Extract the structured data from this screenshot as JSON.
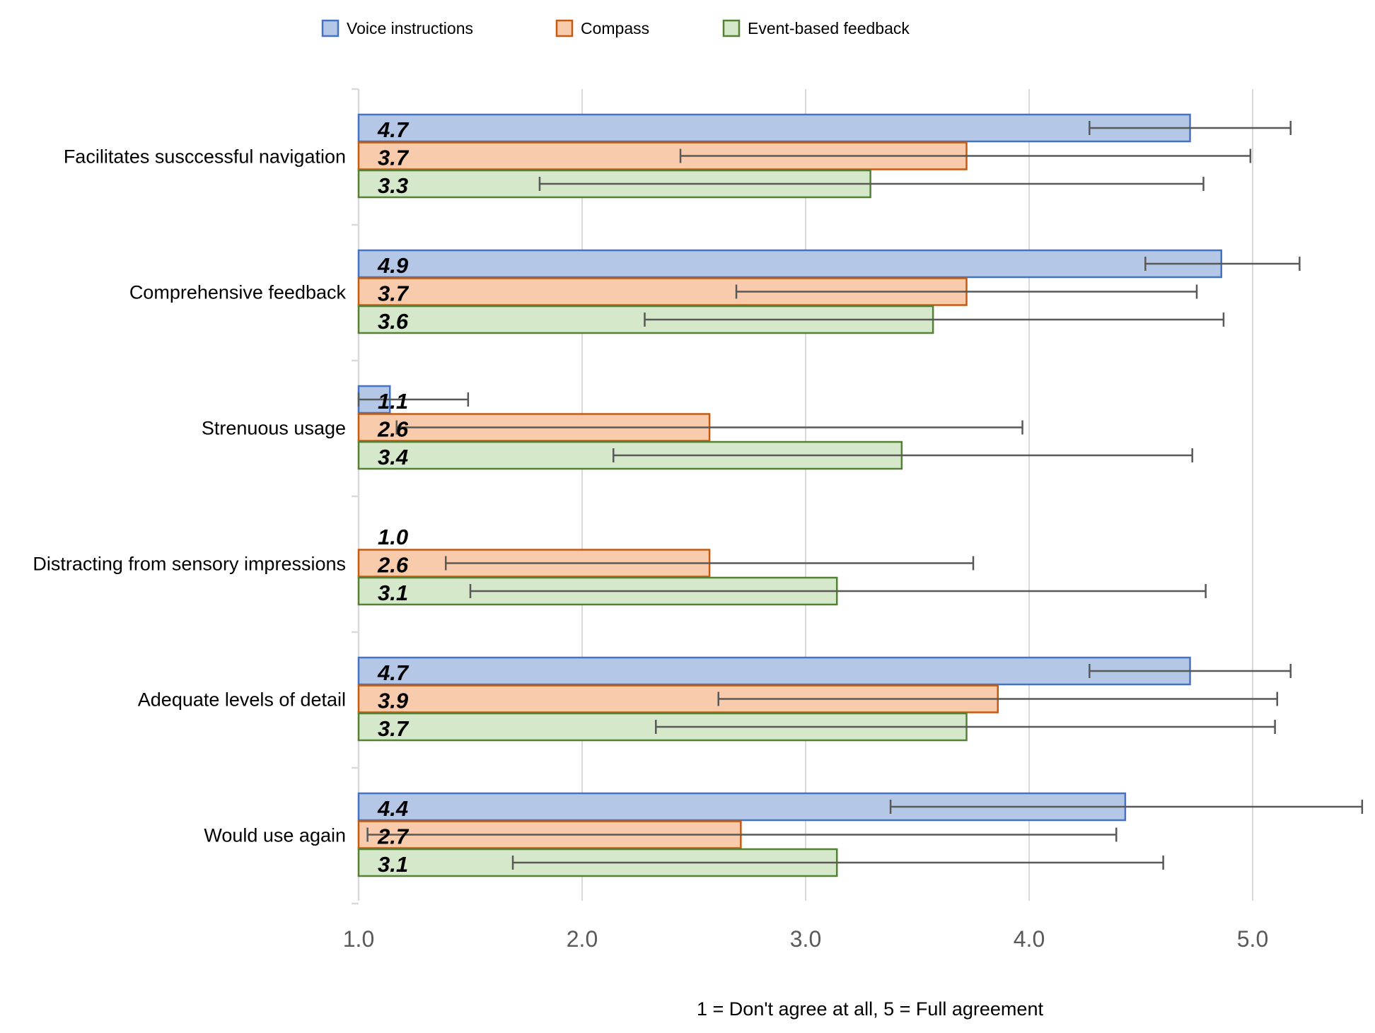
{
  "chart_data": {
    "type": "bar",
    "orientation": "horizontal",
    "title": "",
    "xlabel": "1 = Don't agree at all, 5 = Full agreement",
    "ylabel": "",
    "xlim": [
      1.0,
      5.5
    ],
    "xticks": [
      1.0,
      2.0,
      3.0,
      4.0,
      5.0
    ],
    "xtick_labels": [
      "1.0",
      "2.0",
      "3.0",
      "4.0",
      "5.0"
    ],
    "grid": true,
    "legend_position": "top",
    "categories": [
      "Facilitates susccessful navigation",
      "Comprehensive feedback",
      "Strenuous usage",
      "Distracting from sensory impressions",
      "Adequate levels of detail",
      "Would use again"
    ],
    "series": [
      {
        "name": "Voice instructions",
        "fill": "#b4c7e7",
        "stroke": "#4472c4",
        "values": [
          4.72,
          4.86,
          1.14,
          1.0,
          4.72,
          4.43
        ],
        "labels": [
          "4.7",
          "4.9",
          "1.1",
          "1.0",
          "4.7",
          "4.4"
        ],
        "error_low": [
          4.27,
          4.52,
          1.0,
          null,
          4.27,
          3.38
        ],
        "error_high": [
          5.17,
          5.21,
          1.49,
          null,
          5.17,
          5.49
        ]
      },
      {
        "name": "Compass",
        "fill": "#f8cbad",
        "stroke": "#c55a11",
        "values": [
          3.72,
          3.72,
          2.57,
          2.57,
          3.86,
          2.71
        ],
        "labels": [
          "3.7",
          "3.7",
          "2.6",
          "2.6",
          "3.9",
          "2.7"
        ],
        "error_low": [
          2.44,
          2.69,
          1.17,
          1.39,
          2.61,
          1.04
        ],
        "error_high": [
          4.99,
          4.75,
          3.97,
          3.75,
          5.11,
          4.39
        ]
      },
      {
        "name": "Event-based feedback",
        "fill": "#d5e8c9",
        "stroke": "#548235",
        "values": [
          3.29,
          3.57,
          3.43,
          3.14,
          3.72,
          3.14
        ],
        "labels": [
          "3.3",
          "3.6",
          "3.4",
          "3.1",
          "3.7",
          "3.1"
        ],
        "error_low": [
          1.81,
          2.28,
          2.14,
          1.5,
          2.33,
          1.69
        ],
        "error_high": [
          4.78,
          4.87,
          4.73,
          4.79,
          5.1,
          4.6
        ]
      }
    ]
  }
}
